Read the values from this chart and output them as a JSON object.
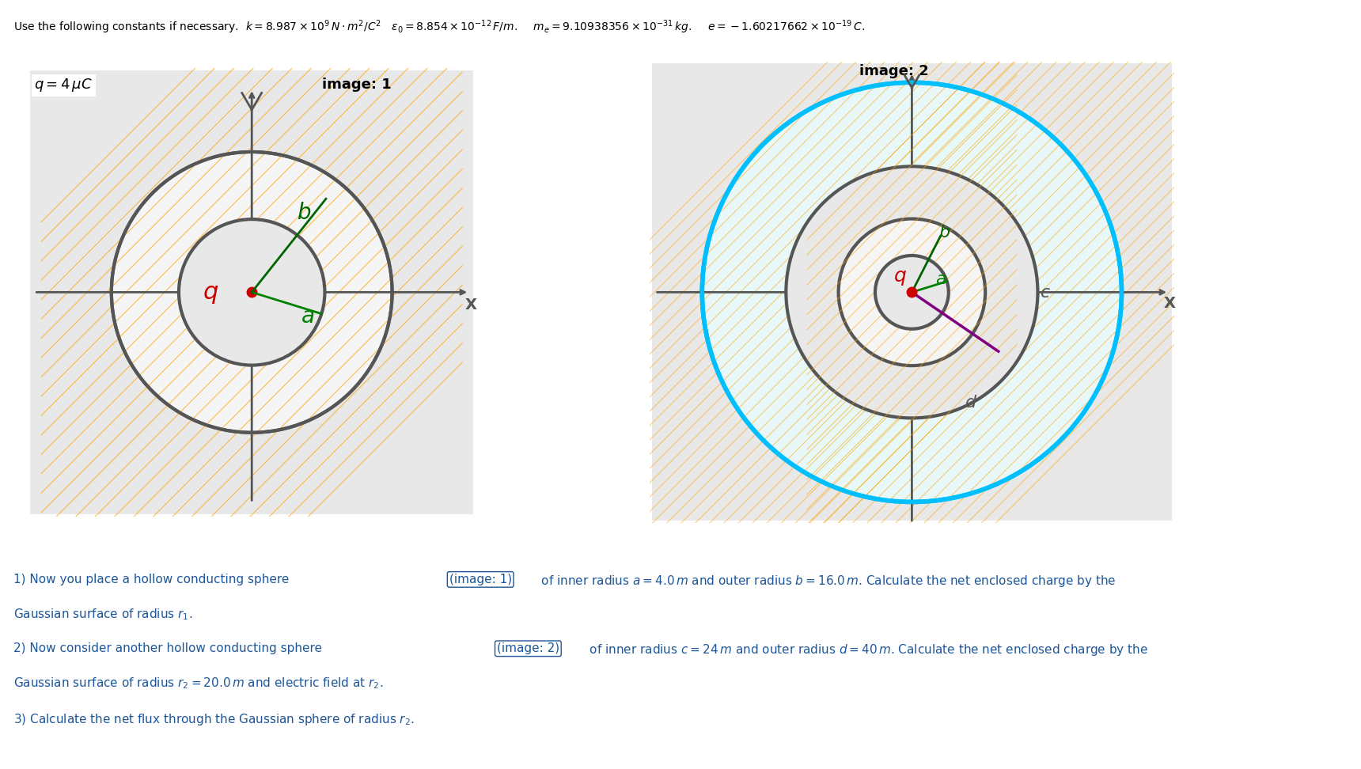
{
  "header": "Use the following constants if necessary.  k = 8.987 \\times 10^9\\, N \\cdot m^2/C^2 \\quad \\epsilon_0 = 8.854 \\times 10^{-12}\\, F/m. \\quad m_e = 9.10938356 \\times 10^{-31}\\, kg. \\quad e = -1.60217662 \\times 10^{-19}\\, C.",
  "bg_color": "#f0f0f0",
  "white_bg": "#ffffff",
  "image1_label": "image: 1",
  "image2_label": "image: 2",
  "q_label": "q = 4 \\mu C",
  "line1_part1": "1) Now you place a hollow conducting sphere ",
  "line1_img": "(image: 1)",
  "line1_part2": " of inner radius $a = 4.0\\,m$ and outer radius $b = 16.0\\,m$. Calculate the net enclosed charge by the",
  "line1_cont": "Gaussian surface of radius $r_1$.",
  "line2_part1": "2) Now consider another hollow conducting sphere ",
  "line2_img": "(image: 2)",
  "line2_part2": " of inner radius $c = 24\\,m$ and outer radius $d = 40\\,m$. Calculate the net enclosed charge by the",
  "line2_cont": "Gaussian surface of radius $r_2 = 20.0\\,m$ and electric field at $r_2$.",
  "line3": "3) Calculate the net flux through the Gaussian sphere of radius $r_2$.",
  "orange": "#FFA500",
  "gray": "#808080",
  "dark_gray": "#555555",
  "green": "#008000",
  "red": "#CC0000",
  "cyan": "#00BFFF",
  "blue_text": "#1E5799"
}
